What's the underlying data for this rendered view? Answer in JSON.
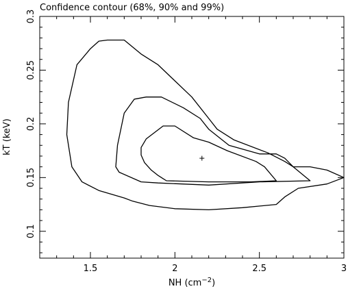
{
  "chart_data": {
    "type": "contour",
    "title": "Confidence contour (68%, 90% and 99%)",
    "xlabel": "NH (cm",
    "xlabel_sup": "−2",
    "xlabel_close": ")",
    "ylabel": "kT (keV)",
    "xlim": [
      1.2,
      3.0
    ],
    "ylim": [
      0.075,
      0.3
    ],
    "xticks": [
      {
        "value": 1.5,
        "label": "1.5"
      },
      {
        "value": 2.0,
        "label": "2"
      },
      {
        "value": 2.5,
        "label": "2.5"
      },
      {
        "value": 3.0,
        "label": "3"
      }
    ],
    "yticks": [
      {
        "value": 0.1,
        "label": "0.1"
      },
      {
        "value": 0.15,
        "label": "0.15"
      },
      {
        "value": 0.2,
        "label": "0.2"
      },
      {
        "value": 0.25,
        "label": "0.25"
      },
      {
        "value": 0.3,
        "label": "0.3"
      }
    ],
    "best_fit": {
      "x": 2.16,
      "y": 0.168
    },
    "contours": [
      {
        "level": "68%",
        "points": [
          [
            1.8,
            0.171
          ],
          [
            1.8,
            0.178
          ],
          [
            1.83,
            0.186
          ],
          [
            1.93,
            0.198
          ],
          [
            2.0,
            0.198
          ],
          [
            2.11,
            0.187
          ],
          [
            2.2,
            0.183
          ],
          [
            2.31,
            0.175
          ],
          [
            2.48,
            0.165
          ],
          [
            2.53,
            0.16
          ],
          [
            2.6,
            0.147
          ],
          [
            2.45,
            0.146
          ],
          [
            2.2,
            0.146
          ],
          [
            1.95,
            0.147
          ],
          [
            1.93,
            0.149
          ],
          [
            1.9,
            0.152
          ],
          [
            1.86,
            0.157
          ],
          [
            1.82,
            0.164
          ]
        ]
      },
      {
        "level": "90%",
        "points": [
          [
            1.67,
            0.155
          ],
          [
            1.65,
            0.16
          ],
          [
            1.66,
            0.18
          ],
          [
            1.7,
            0.21
          ],
          [
            1.76,
            0.223
          ],
          [
            1.83,
            0.225
          ],
          [
            1.92,
            0.225
          ],
          [
            2.05,
            0.215
          ],
          [
            2.15,
            0.205
          ],
          [
            2.2,
            0.195
          ],
          [
            2.32,
            0.18
          ],
          [
            2.5,
            0.172
          ],
          [
            2.6,
            0.172
          ],
          [
            2.65,
            0.168
          ],
          [
            2.7,
            0.16
          ],
          [
            2.8,
            0.147
          ],
          [
            2.5,
            0.146
          ],
          [
            2.2,
            0.143
          ],
          [
            1.9,
            0.145
          ],
          [
            1.8,
            0.146
          ]
        ]
      },
      {
        "level": "99%",
        "points": [
          [
            1.37,
            0.22
          ],
          [
            1.42,
            0.255
          ],
          [
            1.5,
            0.27
          ],
          [
            1.55,
            0.277
          ],
          [
            1.6,
            0.278
          ],
          [
            1.7,
            0.278
          ],
          [
            1.8,
            0.265
          ],
          [
            1.9,
            0.255
          ],
          [
            2.0,
            0.24
          ],
          [
            2.1,
            0.225
          ],
          [
            2.2,
            0.205
          ],
          [
            2.25,
            0.195
          ],
          [
            2.35,
            0.185
          ],
          [
            2.55,
            0.173
          ],
          [
            2.65,
            0.165
          ],
          [
            2.7,
            0.16
          ],
          [
            2.75,
            0.16
          ],
          [
            2.8,
            0.16
          ],
          [
            2.9,
            0.157
          ],
          [
            3.0,
            0.15
          ],
          [
            2.9,
            0.144
          ],
          [
            2.73,
            0.14
          ],
          [
            2.65,
            0.132
          ],
          [
            2.6,
            0.125
          ],
          [
            2.4,
            0.122
          ],
          [
            2.2,
            0.12
          ],
          [
            2.0,
            0.121
          ],
          [
            1.85,
            0.124
          ],
          [
            1.75,
            0.128
          ],
          [
            1.7,
            0.131
          ],
          [
            1.55,
            0.138
          ],
          [
            1.45,
            0.146
          ],
          [
            1.39,
            0.16
          ],
          [
            1.36,
            0.19
          ]
        ]
      }
    ]
  }
}
